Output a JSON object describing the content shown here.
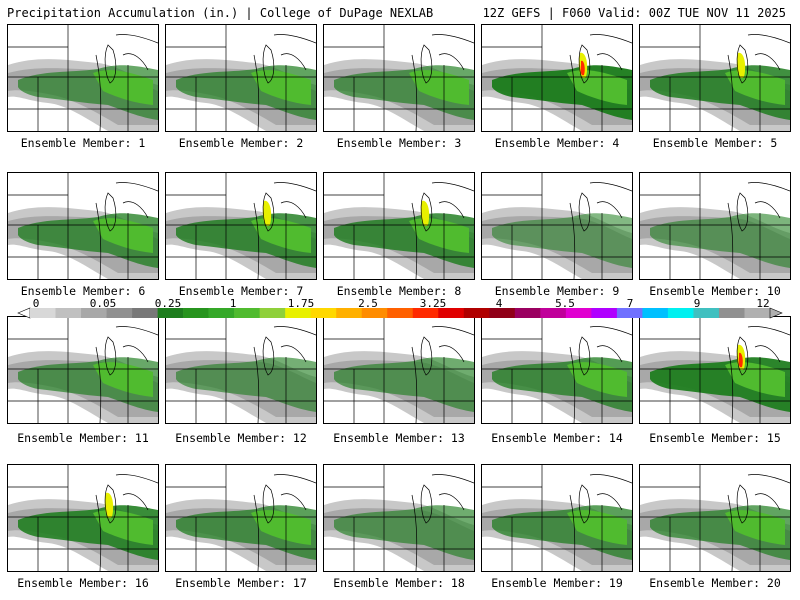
{
  "header": {
    "left_title": "Precipitation Accumulation (in.) | College of DuPage NEXLAB",
    "right_title": "12Z GEFS | F060 Valid: 00Z TUE NOV 11 2025"
  },
  "colorbar": {
    "tick_labels": [
      "0",
      "0.05",
      "0.25",
      "1",
      "1.75",
      "2.5",
      "3.25",
      "4",
      "5.5",
      "7",
      "9",
      "12"
    ],
    "colors": [
      "#d8d8d8",
      "#c0c0c0",
      "#a8a8a8",
      "#909090",
      "#787878",
      "#1e7d1e",
      "#27941e",
      "#35a828",
      "#50bb2f",
      "#8fd03a",
      "#e8f000",
      "#ffd800",
      "#ffb000",
      "#ff8c00",
      "#ff6000",
      "#ff2a00",
      "#e00000",
      "#b00000",
      "#900018",
      "#9a0060",
      "#c0009a",
      "#e000d0",
      "#b000ff",
      "#7070ff",
      "#00c0ff",
      "#00f0f0",
      "#40c0c0",
      "#909090",
      "#b0b0b0"
    ]
  },
  "panels": [
    {
      "label": "Ensemble Member: 1",
      "intensity": 0.45
    },
    {
      "label": "Ensemble Member: 2",
      "intensity": 0.5
    },
    {
      "label": "Ensemble Member: 3",
      "intensity": 0.45
    },
    {
      "label": "Ensemble Member: 4",
      "intensity": 0.95
    },
    {
      "label": "Ensemble Member: 5",
      "intensity": 0.75
    },
    {
      "label": "Ensemble Member: 6",
      "intensity": 0.6
    },
    {
      "label": "Ensemble Member: 7",
      "intensity": 0.7
    },
    {
      "label": "Ensemble Member: 8",
      "intensity": 0.7
    },
    {
      "label": "Ensemble Member: 9",
      "intensity": 0.25
    },
    {
      "label": "Ensemble Member: 10",
      "intensity": 0.3
    },
    {
      "label": "Ensemble Member: 11",
      "intensity": 0.45
    },
    {
      "label": "Ensemble Member: 12",
      "intensity": 0.35
    },
    {
      "label": "Ensemble Member: 13",
      "intensity": 0.4
    },
    {
      "label": "Ensemble Member: 14",
      "intensity": 0.6
    },
    {
      "label": "Ensemble Member: 15",
      "intensity": 0.9
    },
    {
      "label": "Ensemble Member: 16",
      "intensity": 0.8
    },
    {
      "label": "Ensemble Member: 17",
      "intensity": 0.55
    },
    {
      "label": "Ensemble Member: 18",
      "intensity": 0.4
    },
    {
      "label": "Ensemble Member: 19",
      "intensity": 0.55
    },
    {
      "label": "Ensemble Member: 20",
      "intensity": 0.5
    }
  ]
}
